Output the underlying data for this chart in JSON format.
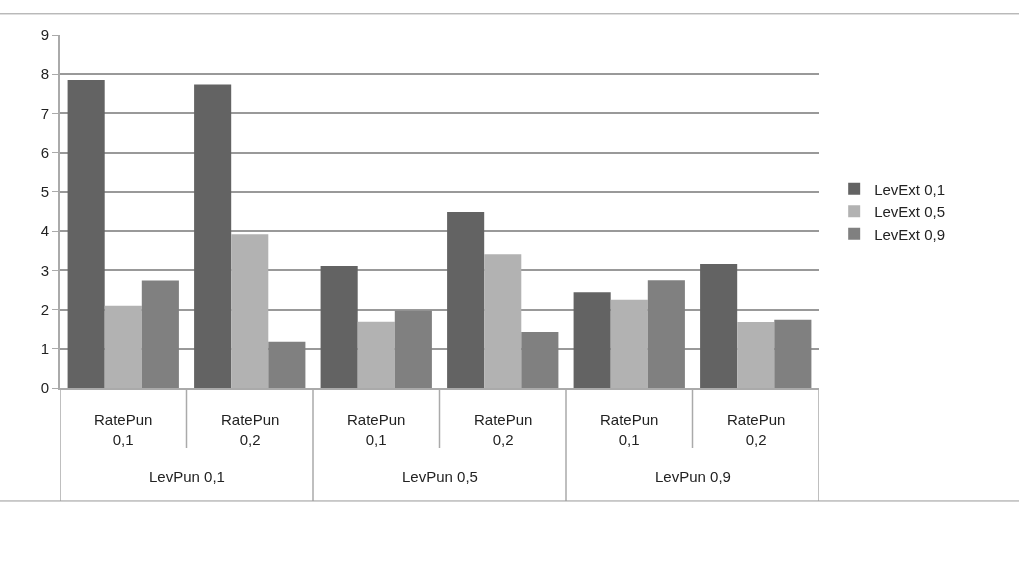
{
  "chart_data": {
    "type": "bar",
    "categories": [
      "RatePun\n0,1",
      "RatePun\n0,2",
      "RatePun\n0,1",
      "RatePun\n0,2",
      "RatePun\n0,1",
      "RatePun\n0,2"
    ],
    "series": [
      {
        "name": "LevExt 0,1",
        "color": "#636363",
        "values": [
          7.85,
          7.74,
          3.11,
          4.49,
          2.44,
          3.16
        ]
      },
      {
        "name": "LevExt 0,5",
        "color": "#b2b2b2",
        "values": [
          2.1,
          3.92,
          1.69,
          3.41,
          2.25,
          1.68
        ]
      },
      {
        "name": "LevExt 0,9",
        "color": "#808080",
        "values": [
          2.74,
          1.18,
          1.97,
          1.43,
          2.75,
          1.74
        ]
      }
    ],
    "annotations": [
      "LevPun 0,1",
      "LevPun 0,5",
      "LevPun 0,9"
    ],
    "ylim": [
      0,
      9
    ],
    "yticks": [
      0,
      1,
      2,
      3,
      4,
      5,
      6,
      7,
      8,
      9
    ],
    "grid": "y",
    "legend": "right"
  }
}
